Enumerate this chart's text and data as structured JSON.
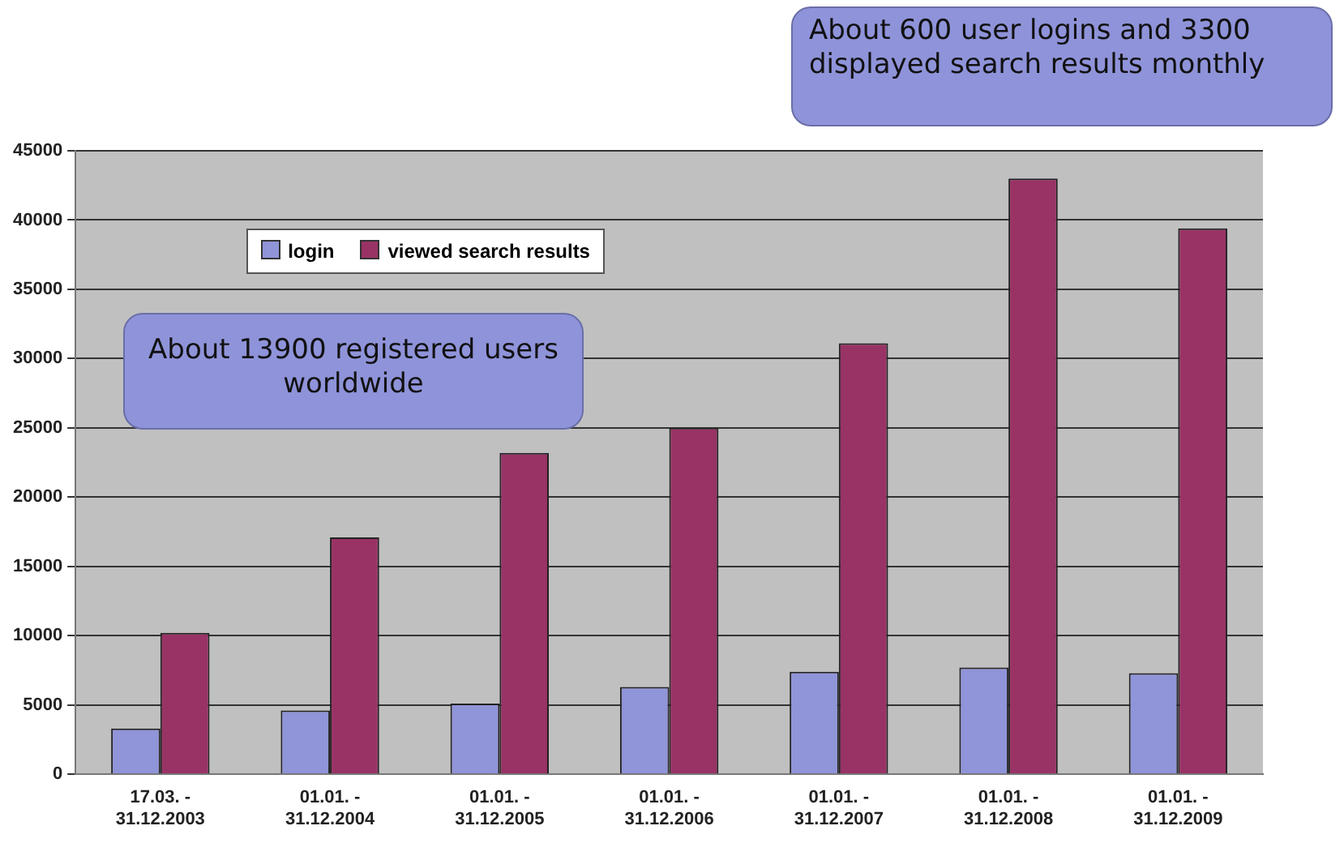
{
  "chart_data": {
    "type": "bar",
    "categories": [
      "17.03. - 31.12.2003",
      "01.01. - 31.12.2004",
      "01.01. - 31.12.2005",
      "01.01. - 31.12.2006",
      "01.01. - 31.12.2007",
      "01.01. - 31.12.2008",
      "01.01. - 31.12.2009"
    ],
    "series": [
      {
        "name": "login",
        "color": "#9094d8",
        "values": [
          3300,
          4600,
          5100,
          6300,
          7400,
          7700,
          7300
        ]
      },
      {
        "name": "viewed search results",
        "color": "#993366",
        "values": [
          10200,
          17100,
          23200,
          25000,
          31100,
          43000,
          39400
        ]
      }
    ],
    "ylim": [
      0,
      45000
    ],
    "yticks": [
      0,
      5000,
      10000,
      15000,
      20000,
      25000,
      30000,
      35000,
      40000,
      45000
    ],
    "grid": "y",
    "legend": "top left",
    "annotations": [
      "About 600 user logins and 3300 displayed search results monthly",
      "About 13900 registered users worldwide"
    ]
  }
}
